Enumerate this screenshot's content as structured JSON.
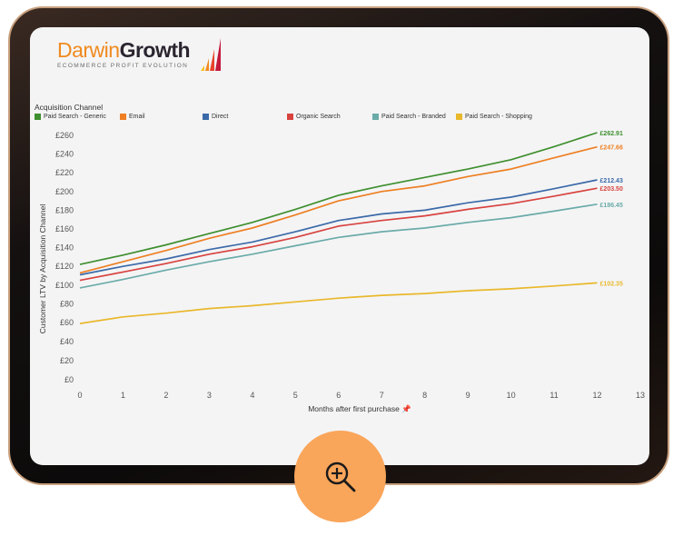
{
  "logo": {
    "word_a": "Darwin",
    "word_b": "Growth",
    "tagline": "ECOMMERCE PROFIT EVOLUTION",
    "colors": [
      "#f7c325",
      "#f08a1e",
      "#e8432b",
      "#c31a3c"
    ]
  },
  "zoom_button": {
    "icon": "zoom-in-icon",
    "color": "#f9a55a"
  },
  "chart_data": {
    "type": "line",
    "legend_title": "Acquisition Channel",
    "xlabel": "Months after first purchase",
    "xlabel_suffix": "📌",
    "ylabel": "Customer LTV by Acquisition Channel",
    "xlim": [
      0,
      13
    ],
    "ylim": [
      0,
      260
    ],
    "x_ticks": [
      "0",
      "1",
      "2",
      "3",
      "4",
      "5",
      "6",
      "7",
      "8",
      "9",
      "10",
      "11",
      "12",
      "13"
    ],
    "y_ticks": [
      {
        "value": 0,
        "label": "£0"
      },
      {
        "value": 20,
        "label": "£20"
      },
      {
        "value": 40,
        "label": "£40"
      },
      {
        "value": 60,
        "label": "£60"
      },
      {
        "value": 80,
        "label": "£80"
      },
      {
        "value": 100,
        "label": "£100"
      },
      {
        "value": 120,
        "label": "£120"
      },
      {
        "value": 140,
        "label": "£140"
      },
      {
        "value": 160,
        "label": "£160"
      },
      {
        "value": 180,
        "label": "£180"
      },
      {
        "value": 200,
        "label": "£200"
      },
      {
        "value": 220,
        "label": "£220"
      },
      {
        "value": 240,
        "label": "£240"
      },
      {
        "value": 260,
        "label": "£260"
      }
    ],
    "x": [
      0,
      1,
      2,
      3,
      4,
      5,
      6,
      7,
      8,
      9,
      10,
      11,
      12
    ],
    "series": [
      {
        "name": "Paid Search - Generic",
        "color": "#3f8f2f",
        "end_label": "£262.91",
        "values": [
          122,
          132,
          143,
          155,
          167,
          181,
          196,
          206,
          215,
          224,
          234,
          248,
          262.91
        ]
      },
      {
        "name": "Email",
        "color": "#ee7f22",
        "end_label": "£247.66",
        "values": [
          113,
          125,
          137,
          150,
          161,
          175,
          190,
          200,
          206,
          216,
          224,
          236,
          247.66
        ]
      },
      {
        "name": "Direct",
        "color": "#3c6aa8",
        "end_label": "£212.43",
        "values": [
          111,
          120,
          128,
          138,
          146,
          157,
          169,
          176,
          180,
          188,
          194,
          203,
          212.43
        ]
      },
      {
        "name": "Organic Search",
        "color": "#d8433f",
        "end_label": "£203.50",
        "values": [
          105,
          114,
          123,
          133,
          141,
          151,
          163,
          169,
          174,
          181,
          187,
          195,
          203.5
        ]
      },
      {
        "name": "Paid Search - Branded",
        "color": "#6aaba8",
        "end_label": "£186.45",
        "values": [
          97,
          106,
          116,
          125,
          133,
          142,
          151,
          157,
          161,
          167,
          172,
          179,
          186.45
        ]
      },
      {
        "name": "Paid Search - Shopping",
        "color": "#e9b82b",
        "end_label": "£102.35",
        "values": [
          59,
          66,
          70,
          75,
          78,
          82,
          86,
          89,
          91,
          94,
          96,
          99,
          102.35
        ]
      }
    ]
  }
}
